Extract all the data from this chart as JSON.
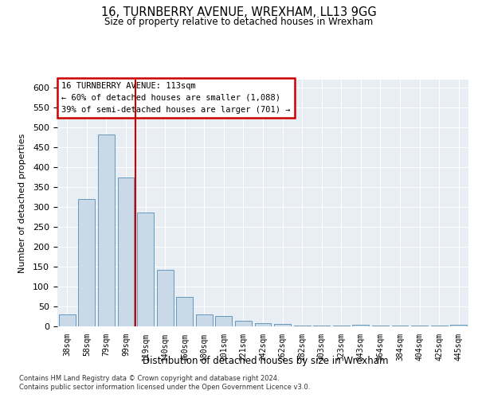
{
  "title": "16, TURNBERRY AVENUE, WREXHAM, LL13 9GG",
  "subtitle": "Size of property relative to detached houses in Wrexham",
  "xlabel": "Distribution of detached houses by size in Wrexham",
  "ylabel": "Number of detached properties",
  "bar_color": "#c9d9e8",
  "bar_edge_color": "#6699bb",
  "vline_color": "#cc0000",
  "vline_index": 4,
  "annotation_title": "16 TURNBERRY AVENUE: 113sqm",
  "annotation_line1": "← 60% of detached houses are smaller (1,088)",
  "annotation_line2": "39% of semi-detached houses are larger (701) →",
  "categories": [
    "38sqm",
    "58sqm",
    "79sqm",
    "99sqm",
    "119sqm",
    "140sqm",
    "160sqm",
    "180sqm",
    "201sqm",
    "221sqm",
    "242sqm",
    "262sqm",
    "282sqm",
    "303sqm",
    "323sqm",
    "343sqm",
    "364sqm",
    "384sqm",
    "404sqm",
    "425sqm",
    "445sqm"
  ],
  "values": [
    30,
    320,
    483,
    375,
    286,
    143,
    75,
    30,
    27,
    15,
    8,
    6,
    2,
    2,
    2,
    5,
    2,
    2,
    2,
    2,
    5
  ],
  "ylim": [
    0,
    620
  ],
  "yticks": [
    0,
    50,
    100,
    150,
    200,
    250,
    300,
    350,
    400,
    450,
    500,
    550,
    600
  ],
  "plot_bg_color": "#e8eef4",
  "footer1": "Contains HM Land Registry data © Crown copyright and database right 2024.",
  "footer2": "Contains public sector information licensed under the Open Government Licence v3.0."
}
